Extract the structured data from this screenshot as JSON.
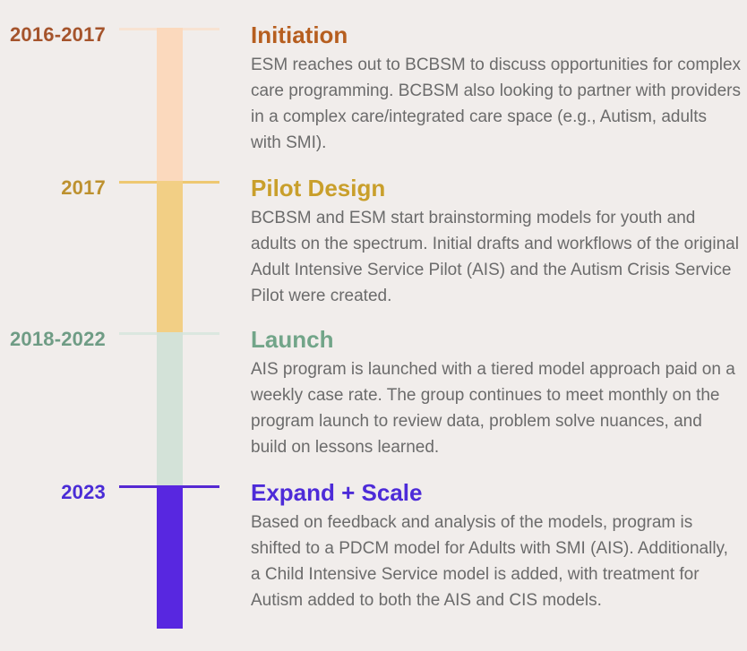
{
  "page": {
    "background_color": "#f1edeb",
    "body_text_color": "#6b6b6b"
  },
  "timeline": {
    "phases": [
      {
        "year": "2016-2017",
        "year_color": "#a5542c",
        "title": "Initiation",
        "title_color": "#b65e1f",
        "bar_color": "#fbd9bd",
        "line_color": "#f8e3d2",
        "description": "ESM reaches out to BCBSM to discuss opportunities for complex care programming. BCBSM also looking to partner with providers in a complex care/integrated care space (e.g., Autism, adults with SMI)."
      },
      {
        "year": "2017",
        "year_color": "#bd912f",
        "title": "Pilot Design",
        "title_color": "#c99f2b",
        "bar_color": "#f2cf85",
        "line_color": "#eec871",
        "description": "BCBSM and ESM start brainstorming models for youth and adults on the spectrum. Initial drafts and workflows of the original Adult Intensive Service Pilot (AIS) and the Autism Crisis Service Pilot were created."
      },
      {
        "year": "2018-2022",
        "year_color": "#6f9c85",
        "title": "Launch",
        "title_color": "#72a589",
        "bar_color": "#d3e2d8",
        "line_color": "#dbe7df",
        "description": "AIS program is launched with a tiered model approach paid on a weekly case rate. The group continues to meet monthly on the program launch to review data, problem solve nuances, and build on lessons learned."
      },
      {
        "year": "2023",
        "year_color": "#4a2cd6",
        "title": "Expand + Scale",
        "title_color": "#4d2bd8",
        "bar_color": "#5827e0",
        "line_color": "#5629d2",
        "description": "Based on feedback and analysis of the models, program is shifted to a PDCM model for Adults with SMI (AIS). Additionally, a Child Intensive Service model is added, with treatment for Autism added to both the AIS and CIS models."
      }
    ]
  }
}
